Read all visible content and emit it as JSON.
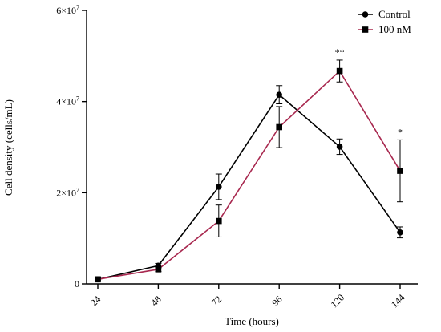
{
  "chart_data": {
    "type": "line",
    "title": "",
    "xlabel": "Time (hours)",
    "ylabel": "Cell density (cells/mL)",
    "x": [
      24,
      48,
      72,
      96,
      120,
      144
    ],
    "x_tick_labels": [
      "24",
      "48",
      "72",
      "96",
      "120",
      "144"
    ],
    "ylim": [
      0,
      60000000
    ],
    "y_ticks": [
      0,
      20000000,
      40000000,
      60000000
    ],
    "y_tick_labels": [
      "0",
      "2×10",
      "4×10",
      "6×10"
    ],
    "y_tick_exponents": [
      "",
      "7",
      "7",
      "7"
    ],
    "grid": false,
    "legend_position": "top-right",
    "series": [
      {
        "name": "Control",
        "marker": "circle",
        "color": "#000000",
        "values": [
          1000000,
          4000000,
          21300000,
          41500000,
          30100000,
          11300000
        ],
        "errors": [
          300000,
          500000,
          2800000,
          2000000,
          1700000,
          1200000
        ]
      },
      {
        "name": "100 nM",
        "marker": "square",
        "color": "#a8284f",
        "values": [
          1000000,
          3200000,
          13800000,
          34400000,
          46700000,
          24800000
        ],
        "errors": [
          300000,
          500000,
          3500000,
          4500000,
          2400000,
          6800000
        ]
      }
    ],
    "annotations": [
      {
        "x": 120,
        "text": "**"
      },
      {
        "x": 144,
        "text": "*"
      }
    ]
  }
}
